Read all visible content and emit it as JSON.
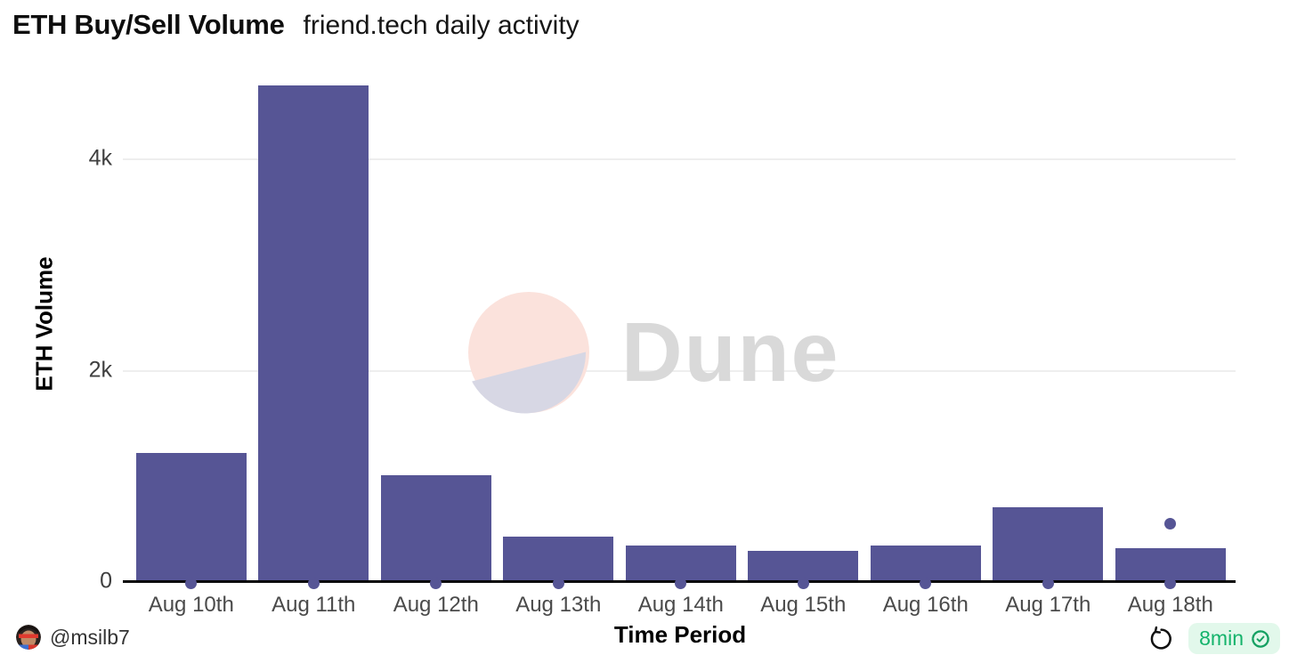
{
  "header": {
    "title": "ETH Buy/Sell Volume",
    "subtitle": "friend.tech daily activity"
  },
  "chart_data": {
    "type": "bar",
    "title": "ETH Buy/Sell Volume",
    "subtitle": "friend.tech daily activity",
    "xlabel": "Time Period",
    "ylabel": "ETH Volume",
    "categories": [
      "Aug 10th",
      "Aug 11th",
      "Aug 12th",
      "Aug 13th",
      "Aug 14th",
      "Aug 15th",
      "Aug 16th",
      "Aug 17th",
      "Aug 18th"
    ],
    "values": [
      1220,
      4700,
      1010,
      430,
      345,
      295,
      345,
      710,
      320
    ],
    "scatter_points": [
      {
        "category": "Aug 18th",
        "value": 550
      }
    ],
    "yticks": [
      {
        "value": 0,
        "label": "0"
      },
      {
        "value": 2000,
        "label": "2k"
      },
      {
        "value": 4000,
        "label": "4k"
      }
    ],
    "ylim": [
      0,
      4800
    ],
    "grid": "horizontal",
    "legend": "none",
    "bar_color": "#565595"
  },
  "watermark": {
    "label": "Dune"
  },
  "footer": {
    "author_handle": "@msilb7",
    "refresh_age": "8min",
    "refresh_icon": "rotate-ccw-icon",
    "verified_icon": "verified-seal-icon"
  },
  "colors": {
    "bar": "#565595",
    "gridline": "#eeeeee",
    "axis": "#0b0b0b",
    "watermark_text": "#d9d9d9",
    "watermark_pink": "#fbe2dc",
    "watermark_lavender": "#d7d7e4",
    "badge_bg": "#e2f8eb",
    "badge_text": "#14b36b",
    "tick_text": "#4a4a4a"
  }
}
